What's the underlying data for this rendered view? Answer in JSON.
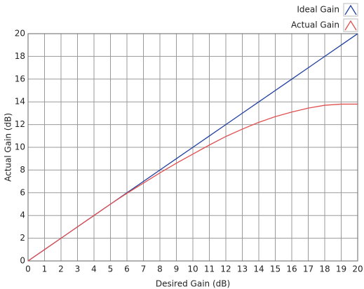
{
  "chart_data": {
    "type": "line",
    "x_label": "Desired Gain (dB)",
    "y_label": "Actual Gain (dB)",
    "x": [
      0,
      1,
      2,
      3,
      4,
      5,
      6,
      7,
      8,
      9,
      10,
      11,
      12,
      13,
      14,
      15,
      16,
      17,
      18,
      19,
      20
    ],
    "series": [
      {
        "name": "Ideal Gain",
        "color": "#1f3fa0",
        "values": [
          0,
          1,
          2,
          3,
          4,
          5,
          6,
          7,
          8,
          9,
          10,
          11,
          12,
          13,
          14,
          15,
          16,
          17,
          18,
          19,
          20
        ]
      },
      {
        "name": "Actual Gain",
        "color": "#e05050",
        "values": [
          0,
          1,
          2,
          3,
          4,
          5,
          5.95,
          6.85,
          7.75,
          8.6,
          9.4,
          10.2,
          10.95,
          11.6,
          12.2,
          12.7,
          13.1,
          13.45,
          13.7,
          13.8,
          13.8
        ]
      }
    ],
    "xlim": [
      0,
      20
    ],
    "xticks": [
      0,
      1,
      2,
      3,
      4,
      5,
      6,
      7,
      8,
      9,
      10,
      11,
      12,
      13,
      14,
      15,
      16,
      17,
      18,
      19,
      20
    ],
    "ylim": [
      0,
      20
    ],
    "yticks": [
      0,
      2,
      4,
      6,
      8,
      10,
      12,
      14,
      16,
      18,
      20
    ],
    "grid": true,
    "legend": "top-right"
  }
}
